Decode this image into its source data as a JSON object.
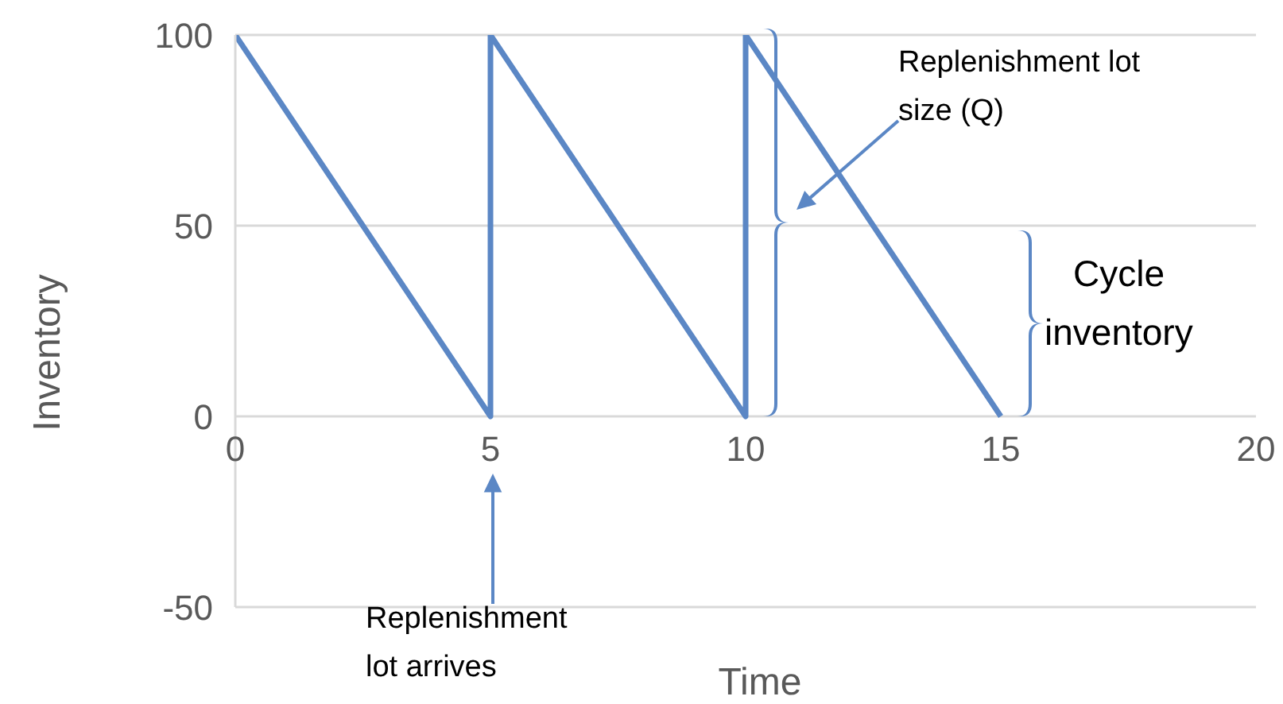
{
  "chart_data": {
    "type": "line",
    "xlabel": "Time",
    "ylabel": "Inventory",
    "x": [
      0,
      5,
      5,
      10,
      10,
      15
    ],
    "series": [
      {
        "color": "#5b87c5",
        "values": [
          100,
          0,
          100,
          0,
          100,
          0
        ]
      }
    ],
    "xlim": [
      0,
      20
    ],
    "xticks": [
      0,
      5,
      10,
      15,
      20
    ],
    "ylim": [
      -50,
      100
    ],
    "yticks": [
      -50,
      0,
      50,
      100
    ],
    "grid": "y",
    "legend": false,
    "marker": "none",
    "line_style": "solid",
    "annotations": [
      "Replenishment lot size (Q)",
      "Cycle inventory",
      "Replenishment lot arrives"
    ]
  }
}
